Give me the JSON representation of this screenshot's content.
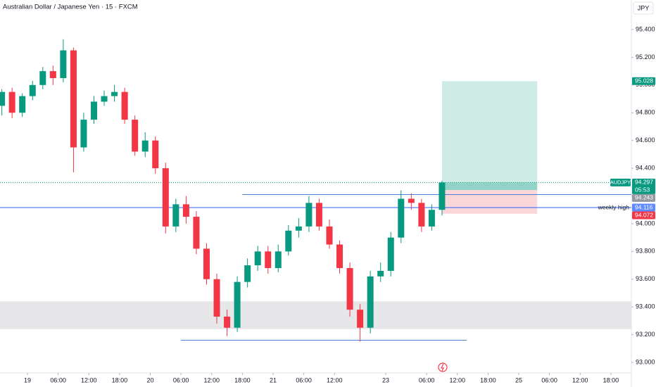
{
  "chart_data": {
    "type": "candlestick",
    "title": "Australian Dollar / Japanese Yen · 15 · FXCM",
    "currency": "JPY",
    "up_color": "#089981",
    "down_color": "#f23645",
    "x": [
      -5,
      -3,
      -1,
      1,
      3,
      5,
      7,
      9,
      11,
      13,
      15,
      17,
      19,
      21,
      23,
      25,
      27,
      29,
      31,
      33,
      35,
      37,
      39,
      41,
      43,
      45,
      47,
      49,
      51,
      53,
      55,
      57,
      59,
      61,
      63,
      65,
      67,
      69,
      71,
      73,
      75,
      77,
      79,
      81
    ],
    "open": [
      94.85,
      94.95,
      94.8,
      94.92,
      95.0,
      95.1,
      95.05,
      95.25,
      94.55,
      94.75,
      94.88,
      94.92,
      94.95,
      94.75,
      94.52,
      94.6,
      94.4,
      93.98,
      94.14,
      94.05,
      93.82,
      93.6,
      93.33,
      93.25,
      93.58,
      93.7,
      93.8,
      93.68,
      93.8,
      93.95,
      93.98,
      94.15,
      93.98,
      93.85,
      93.68,
      93.38,
      93.25,
      93.62,
      93.66,
      93.9,
      94.18,
      94.15,
      93.98,
      94.1
    ],
    "high": [
      94.97,
      94.98,
      94.94,
      95.03,
      95.13,
      95.14,
      95.33,
      95.27,
      94.8,
      94.92,
      94.96,
      95.0,
      94.98,
      94.78,
      94.66,
      94.63,
      94.44,
      94.18,
      94.2,
      94.09,
      93.86,
      93.64,
      93.38,
      93.62,
      93.75,
      93.84,
      93.84,
      93.85,
      93.99,
      94.04,
      94.2,
      94.18,
      94.03,
      93.88,
      93.72,
      93.42,
      93.66,
      93.72,
      93.94,
      94.24,
      94.22,
      94.18,
      94.14,
      94.31
    ],
    "low": [
      94.78,
      94.76,
      94.77,
      94.89,
      94.97,
      95.0,
      95.02,
      94.37,
      94.52,
      94.72,
      94.85,
      94.88,
      94.72,
      94.49,
      94.48,
      94.36,
      93.93,
      93.94,
      94.0,
      93.78,
      93.56,
      93.28,
      93.19,
      93.22,
      93.54,
      93.66,
      93.64,
      93.65,
      93.77,
      93.9,
      93.94,
      93.95,
      93.82,
      93.64,
      93.33,
      93.15,
      93.21,
      93.58,
      93.62,
      93.86,
      94.1,
      93.94,
      93.95,
      94.06
    ],
    "close": [
      94.95,
      94.8,
      94.92,
      95.0,
      95.1,
      95.05,
      95.25,
      94.55,
      94.75,
      94.88,
      94.92,
      94.95,
      94.75,
      94.52,
      94.6,
      94.4,
      93.98,
      94.14,
      94.05,
      93.82,
      93.6,
      93.33,
      93.25,
      93.58,
      93.7,
      93.8,
      93.68,
      93.8,
      93.95,
      93.98,
      94.15,
      93.98,
      93.85,
      93.68,
      93.38,
      93.25,
      93.62,
      93.66,
      93.9,
      94.18,
      94.15,
      93.98,
      94.1,
      94.297
    ],
    "xlim": [
      -5.36,
      118
    ],
    "xticks": [
      {
        "value": 0,
        "label": "19"
      },
      {
        "value": 6,
        "label": "06:00"
      },
      {
        "value": 12,
        "label": "12:00"
      },
      {
        "value": 18,
        "label": "18:00"
      },
      {
        "value": 24,
        "label": "20"
      },
      {
        "value": 30,
        "label": "06:00"
      },
      {
        "value": 36,
        "label": "12:00"
      },
      {
        "value": 42,
        "label": "18:00"
      },
      {
        "value": 48,
        "label": "21"
      },
      {
        "value": 54,
        "label": "06:00"
      },
      {
        "value": 60,
        "label": "12:00"
      },
      {
        "value": 70,
        "label": "23"
      },
      {
        "value": 78,
        "label": "06:00"
      },
      {
        "value": 84,
        "label": "12:00"
      },
      {
        "value": 90,
        "label": "18:00"
      },
      {
        "value": 96,
        "label": "25"
      },
      {
        "value": 102,
        "label": "06:00"
      },
      {
        "value": 108,
        "label": "12:00"
      },
      {
        "value": 114,
        "label": "18:00"
      }
    ],
    "ylim": [
      92.924,
      95.613
    ],
    "yticks": [
      {
        "value": 93.0,
        "label": "93.000"
      },
      {
        "value": 93.2,
        "label": "93.200"
      },
      {
        "value": 93.4,
        "label": "93.400"
      },
      {
        "value": 93.6,
        "label": "93.600"
      },
      {
        "value": 93.8,
        "label": "93.800"
      },
      {
        "value": 94.0,
        "label": "94.000"
      },
      {
        "value": 94.2,
        "label": "94.200"
      },
      {
        "value": 94.4,
        "label": "94.400"
      },
      {
        "value": 94.6,
        "label": "94.600"
      },
      {
        "value": 94.8,
        "label": "94.800"
      },
      {
        "value": 95.0,
        "label": "95.000"
      },
      {
        "value": 95.2,
        "label": "95.200"
      },
      {
        "value": 95.4,
        "label": "95.400"
      }
    ],
    "zone": {
      "from": 93.24,
      "to": 93.44,
      "color": "#e3e3e5"
    },
    "hlines": [
      {
        "value": 94.116,
        "label": "weekly high",
        "color": "#2962ff"
      },
      {
        "value": 94.21,
        "start": 42,
        "color": "#4a7fd4"
      },
      {
        "value": 93.16,
        "start": 30,
        "end": 85.8,
        "color": "#4a7fd4"
      }
    ],
    "current": {
      "name": "AUDJPY",
      "countdown": "05:53",
      "color": "#089981"
    },
    "position": {
      "entry": 94.243,
      "target": 95.028,
      "stop": 94.072,
      "start": 81,
      "end": 99.6
    }
  }
}
